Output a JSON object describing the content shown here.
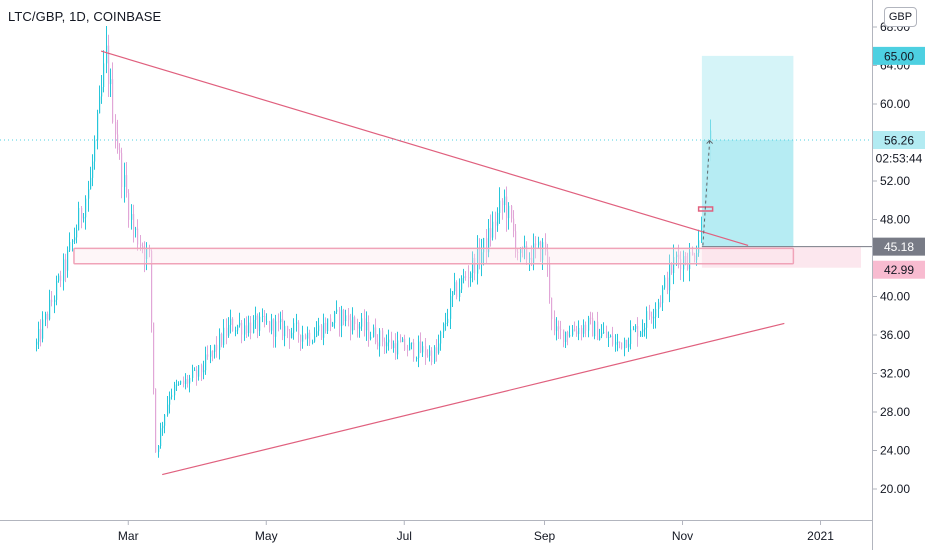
{
  "header": {
    "symbol_title": "LTC/GBP, 1D, COINBASE",
    "currency_button": "GBP"
  },
  "colors": {
    "up": "#26c6da",
    "down": "#e1a6d7",
    "trendline": "#e0607e",
    "zone_border": "#f0a3b8",
    "target_zone": "#b2ebf2",
    "stop_zone": "#fce4ec",
    "last_price_label": "#4dd0e1",
    "current_price_label": "#787b86",
    "stop_label": "#f8bbd0"
  },
  "chart_data": {
    "type": "candlestick",
    "title": "LTC/GBP, 1D, COINBASE",
    "currency": "GBP",
    "x_tick_labels": [
      "Mar",
      "May",
      "Jul",
      "Sep",
      "Nov",
      "2021"
    ],
    "y_tick_labels": [
      "20.00",
      "24.00",
      "28.00",
      "32.00",
      "36.00",
      "40.00",
      "48.00",
      "52.00",
      "60.00",
      "64.00",
      "68.00"
    ],
    "ylim": [
      18,
      69.5
    ],
    "grid": false,
    "price_labels": {
      "target": "65.00",
      "last_price": "56.26",
      "countdown": "02:53:44",
      "current": "45.18",
      "stop": "42.99"
    },
    "anchors": [
      {
        "date": "2020-01-20",
        "price": 35
      },
      {
        "date": "2020-02-03",
        "price": 44
      },
      {
        "date": "2020-02-13",
        "price": 52
      },
      {
        "date": "2020-02-20",
        "price": 65
      },
      {
        "date": "2020-02-26",
        "price": 54
      },
      {
        "date": "2020-03-03",
        "price": 47
      },
      {
        "date": "2020-03-10",
        "price": 44
      },
      {
        "date": "2020-03-13",
        "price": 24
      },
      {
        "date": "2020-03-19",
        "price": 30
      },
      {
        "date": "2020-04-01",
        "price": 32
      },
      {
        "date": "2020-04-15",
        "price": 37
      },
      {
        "date": "2020-05-01",
        "price": 37
      },
      {
        "date": "2020-05-20",
        "price": 36
      },
      {
        "date": "2020-06-03",
        "price": 38
      },
      {
        "date": "2020-06-25",
        "price": 35
      },
      {
        "date": "2020-07-15",
        "price": 34
      },
      {
        "date": "2020-07-22",
        "price": 40
      },
      {
        "date": "2020-08-05",
        "price": 45
      },
      {
        "date": "2020-08-14",
        "price": 50
      },
      {
        "date": "2020-08-21",
        "price": 44
      },
      {
        "date": "2020-09-01",
        "price": 45
      },
      {
        "date": "2020-09-05",
        "price": 36
      },
      {
        "date": "2020-09-20",
        "price": 37
      },
      {
        "date": "2020-10-03",
        "price": 35
      },
      {
        "date": "2020-10-14",
        "price": 37
      },
      {
        "date": "2020-10-22",
        "price": 40
      },
      {
        "date": "2020-10-29",
        "price": 44
      },
      {
        "date": "2020-11-05",
        "price": 44
      },
      {
        "date": "2020-11-09",
        "price": 47
      },
      {
        "date": "2020-11-13",
        "price": 56
      }
    ],
    "drawings": {
      "descending_trendline": {
        "from": {
          "date": "2020-02-18",
          "price": 65.5
        },
        "to": {
          "date": "2020-11-30",
          "price": 45.3
        }
      },
      "ascending_trendline": {
        "from": {
          "date": "2020-03-16",
          "price": 21.5
        },
        "to": {
          "date": "2020-12-16",
          "price": 37.2
        }
      },
      "support_zone": {
        "from": "2020-02-06",
        "to": "2020-12-20",
        "top": 45.0,
        "bottom": 43.4
      },
      "long_position": {
        "from": "2020-11-10",
        "to": "2020-12-20",
        "entry": 45.18,
        "target": 65.0,
        "stop": 42.99
      },
      "arrow": {
        "from": {
          "date": "2020-11-10",
          "price": 45.3
        },
        "to": {
          "date": "2020-11-13",
          "price": 56.2
        }
      }
    }
  }
}
